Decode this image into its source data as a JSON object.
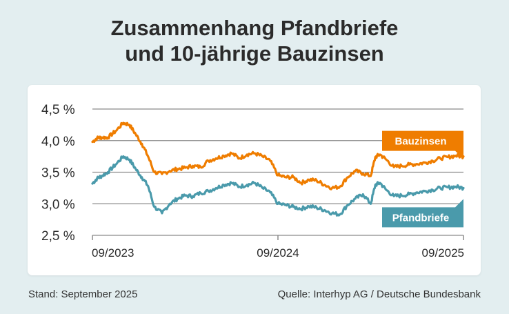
{
  "header": {
    "title_line1": "Zusammenhang Pfandbriefe",
    "title_line2": "und 10-jährige Bauzinsen"
  },
  "footer": {
    "left": "Stand: September 2025",
    "right": "Quelle: Interhyp AG / Deutsche Bundesbank"
  },
  "colors": {
    "bauzinsen": "#ef7d00",
    "pfandbriefe": "#4a9aab",
    "grid": "#8a8a8a",
    "background": "#e3eef0"
  },
  "chart_data": {
    "type": "line",
    "title": "Zusammenhang Pfandbriefe und 10-jährige Bauzinsen",
    "xlabel": "",
    "ylabel": "",
    "ylim": [
      2.5,
      4.5
    ],
    "xlim": [
      0,
      24
    ],
    "x_unit": "Monate ab 09/2023",
    "yticks": [
      2.5,
      3.0,
      3.5,
      4.0,
      4.5
    ],
    "ytick_labels": [
      "2,5 %",
      "3,0 %",
      "3,5 %",
      "4,0 %",
      "4,5 %"
    ],
    "xticks": [
      0,
      12,
      24
    ],
    "xtick_labels": [
      "09/2023",
      "09/2024",
      "09/2025"
    ],
    "grid": true,
    "series": [
      {
        "name": "Bauzinsen",
        "color": "#ef7d00",
        "label_position": "upper-right",
        "x": [
          0,
          0.3,
          0.6,
          1.0,
          1.5,
          2.0,
          2.4,
          2.8,
          3.2,
          3.6,
          4.0,
          4.5,
          5.0,
          5.5,
          6.0,
          6.5,
          7.0,
          7.5,
          8.0,
          8.5,
          9.0,
          9.5,
          10.0,
          10.5,
          11.0,
          11.5,
          12.0,
          12.5,
          13.0,
          13.5,
          14.0,
          14.5,
          15.0,
          15.5,
          16.0,
          16.5,
          17.0,
          17.5,
          18.0,
          18.3,
          18.6,
          19.0,
          19.5,
          20.0,
          20.5,
          21.0,
          21.5,
          22.0,
          22.5,
          23.0,
          23.5,
          24.0
        ],
        "values": [
          3.98,
          4.04,
          4.05,
          4.05,
          4.15,
          4.28,
          4.25,
          4.1,
          3.95,
          3.75,
          3.5,
          3.47,
          3.52,
          3.55,
          3.57,
          3.6,
          3.58,
          3.68,
          3.72,
          3.76,
          3.8,
          3.72,
          3.78,
          3.8,
          3.75,
          3.68,
          3.45,
          3.42,
          3.42,
          3.33,
          3.38,
          3.37,
          3.3,
          3.25,
          3.27,
          3.42,
          3.52,
          3.48,
          3.44,
          3.74,
          3.78,
          3.7,
          3.58,
          3.6,
          3.62,
          3.63,
          3.65,
          3.68,
          3.72,
          3.74,
          3.76,
          3.75
        ]
      },
      {
        "name": "Pfandbriefe",
        "color": "#4a9aab",
        "label_position": "lower-right",
        "x": [
          0,
          0.3,
          0.6,
          1.0,
          1.5,
          2.0,
          2.4,
          2.8,
          3.2,
          3.6,
          4.0,
          4.5,
          5.0,
          5.5,
          6.0,
          6.5,
          7.0,
          7.5,
          8.0,
          8.5,
          9.0,
          9.5,
          10.0,
          10.5,
          11.0,
          11.5,
          12.0,
          12.5,
          13.0,
          13.5,
          14.0,
          14.5,
          15.0,
          15.5,
          16.0,
          16.5,
          17.0,
          17.5,
          18.0,
          18.3,
          18.6,
          19.0,
          19.5,
          20.0,
          20.5,
          21.0,
          21.5,
          22.0,
          22.5,
          23.0,
          23.5,
          24.0
        ],
        "values": [
          3.32,
          3.4,
          3.44,
          3.5,
          3.62,
          3.75,
          3.7,
          3.55,
          3.42,
          3.28,
          2.95,
          2.85,
          3.0,
          3.08,
          3.13,
          3.12,
          3.17,
          3.2,
          3.25,
          3.3,
          3.33,
          3.27,
          3.3,
          3.33,
          3.25,
          3.18,
          3.0,
          2.98,
          2.95,
          2.92,
          2.96,
          2.94,
          2.9,
          2.85,
          2.83,
          2.98,
          3.08,
          3.15,
          3.0,
          3.3,
          3.33,
          3.22,
          3.12,
          3.13,
          3.15,
          3.18,
          3.2,
          3.22,
          3.25,
          3.26,
          3.27,
          3.25
        ]
      }
    ]
  }
}
